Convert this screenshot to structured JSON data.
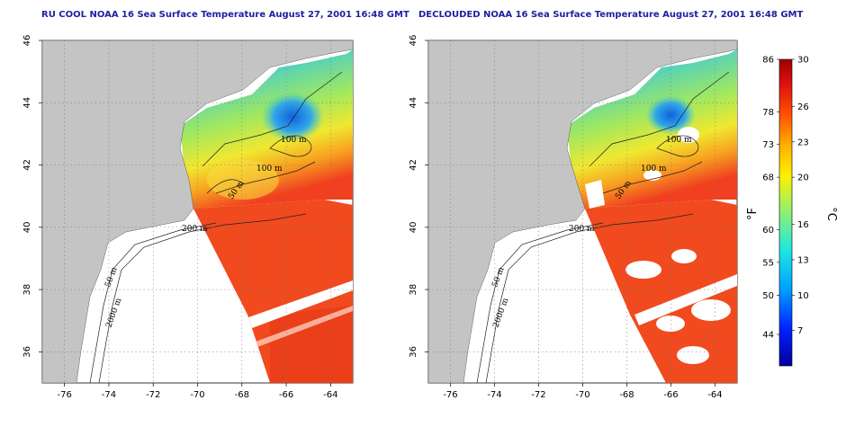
{
  "titles": {
    "left": "RU COOL NOAA 16 Sea Surface Temperature August 27, 2001 16:48 GMT",
    "right": "DECLOUDED NOAA 16 Sea Surface Temperature August 27, 2001 16:48 GMT"
  },
  "map": {
    "lon_ticks": [
      -76,
      -74,
      -72,
      -70,
      -68,
      -66,
      -64
    ],
    "lon_labels": [
      "-76",
      "-74",
      "-72",
      "-70",
      "-68",
      "-66",
      "-64"
    ],
    "lat_ticks": [
      36,
      38,
      40,
      42,
      44,
      46
    ],
    "lat_labels": [
      "36",
      "38",
      "40",
      "42",
      "44",
      "46"
    ],
    "lon_range": [
      -77.0,
      -63.0
    ],
    "lat_range": [
      35.0,
      46.0
    ],
    "contour_labels": [
      "100 m",
      "100 m",
      "50 m",
      "200 m",
      "50 m",
      "2000 m"
    ],
    "colors": {
      "land": "#c4c4c4",
      "water_warm": "#f03c1e",
      "water_mid": "#f0e030",
      "water_cool": "#40c8c0",
      "water_cold": "#3090e0",
      "cloud": "#ffffff"
    }
  },
  "colorbar": {
    "fahrenheit_labels": [
      "86",
      "78",
      "73",
      "68",
      "60",
      "55",
      "50",
      "44"
    ],
    "celsius_labels": [
      "30",
      "26",
      "23",
      "20",
      "16",
      "13",
      "10",
      "7"
    ],
    "fahrenheit_values": [
      86,
      78,
      73,
      68,
      60,
      55,
      50,
      44
    ],
    "celsius_values": [
      30,
      26,
      23,
      20,
      16,
      13,
      10,
      7
    ],
    "range_c": [
      4,
      30
    ],
    "unit_f": "°F",
    "unit_c": "°C"
  }
}
